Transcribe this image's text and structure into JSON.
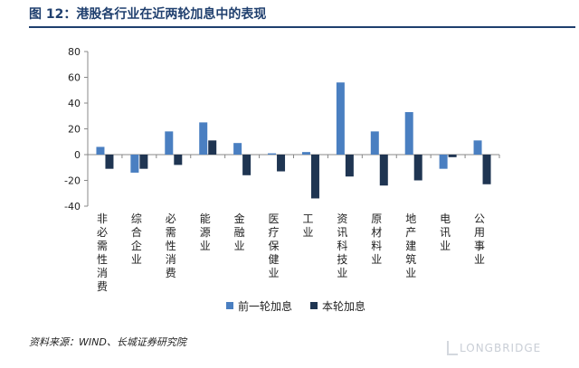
{
  "header": {
    "title": "图 12：港股各行业在近两轮加息中的表现"
  },
  "colors": {
    "header_text": "#1f3f6e",
    "series_prev": "#4a7fc1",
    "series_curr": "#1f3552",
    "axis": "#888888"
  },
  "chart_data": {
    "type": "bar",
    "categories": [
      "非必需性消费",
      "综合企业",
      "必需性消费",
      "能源业",
      "金融业",
      "医疗保健业",
      "工业",
      "资讯科技业",
      "原材料业",
      "地产建筑业",
      "电讯业",
      "公用事业"
    ],
    "series": [
      {
        "name": "前一轮加息",
        "values": [
          6,
          -14,
          18,
          25,
          9,
          1,
          2,
          56,
          18,
          33,
          -11,
          11
        ]
      },
      {
        "name": "本轮加息",
        "values": [
          -11,
          -11,
          -8,
          11,
          -16,
          -13,
          -34,
          -17,
          -24,
          -20,
          -2,
          -23
        ]
      }
    ],
    "yticks": [
      "80",
      "60",
      "40",
      "20",
      "0",
      "-20",
      "-40"
    ],
    "ylim": [
      -40,
      80
    ],
    "legend_position": "bottom",
    "grid": false
  },
  "footer": {
    "source": "资料来源：WIND、长城证券研究院",
    "watermark": "LONGBRIDGE"
  }
}
